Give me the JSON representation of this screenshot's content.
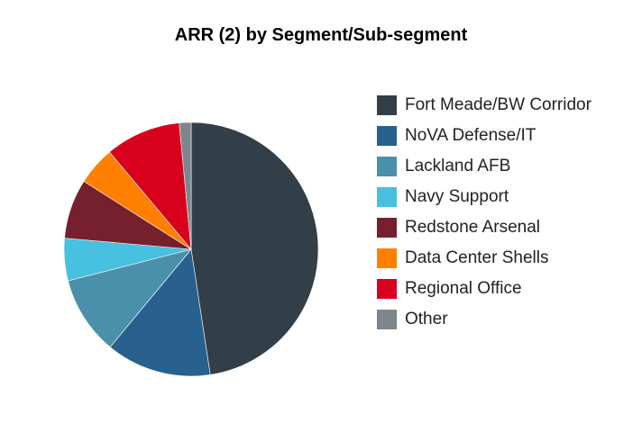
{
  "chart_data": {
    "type": "pie",
    "title": "ARR (2) by Segment/Sub-segment",
    "start": "top, clockwise",
    "legend_position": "right",
    "slices": [
      {
        "name": "Fort Meade/BW Corridor",
        "value": 47.6,
        "color": "#333f48"
      },
      {
        "name": "NoVA Defense/IT",
        "value": 13.4,
        "color": "#28618e"
      },
      {
        "name": "Lackland AFB",
        "value": 10.0,
        "color": "#4a90aa"
      },
      {
        "name": "Navy Support",
        "value": 5.4,
        "color": "#48c0e0"
      },
      {
        "name": "Redstone Arsenal",
        "value": 7.6,
        "color": "#77202d"
      },
      {
        "name": "Data Center Shells",
        "value": 4.9,
        "color": "#ff8000"
      },
      {
        "name": "Regional Office",
        "value": 9.6,
        "color": "#d7001d"
      },
      {
        "name": "Other",
        "value": 1.5,
        "color": "#7d868c"
      }
    ]
  }
}
